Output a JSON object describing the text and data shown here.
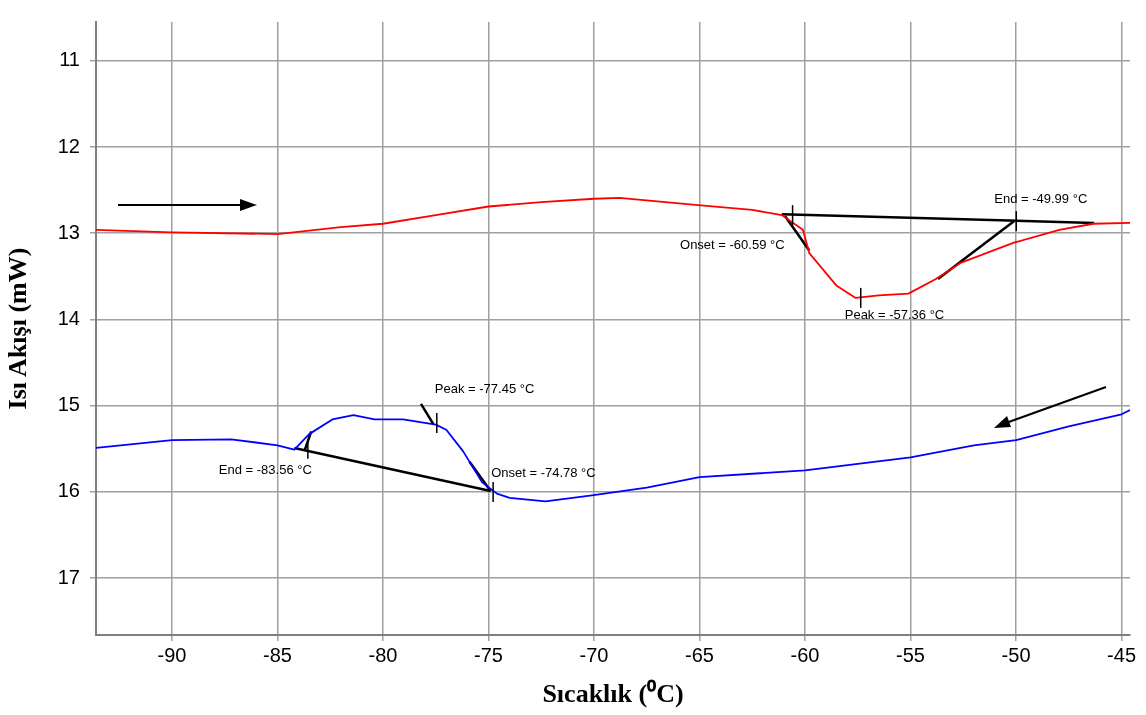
{
  "chart_data": {
    "type": "line",
    "xlabel": "Sıcaklık (⁰C)",
    "ylabel": "Isı Akışı (mW)",
    "xlim": [
      -93.6,
      -44.6
    ],
    "ylim": [
      17.66,
      10.55
    ],
    "xticks": [
      -90,
      -85,
      -80,
      -75,
      -70,
      -65,
      -60,
      -55,
      -50,
      -45
    ],
    "yticks": [
      11,
      12,
      13,
      14,
      15,
      16,
      17
    ],
    "grid": true,
    "legend": false,
    "marker": "none",
    "line_style": "solid",
    "series": [
      {
        "color": "#ff0000",
        "x": [
          -93.6,
          -90,
          -85,
          -82,
          -80,
          -77.5,
          -75,
          -72.5,
          -70,
          -68.8,
          -65.2,
          -62.5,
          -61.1,
          -60.1,
          -59.8,
          -58.5,
          -57.6,
          -56.5,
          -55.1,
          -53.8,
          -52.6,
          -50.1,
          -47.95,
          -46.35,
          -44.6
        ],
        "values": [
          12.96,
          12.99,
          13.01,
          12.93,
          12.89,
          12.79,
          12.69,
          12.64,
          12.6,
          12.59,
          12.67,
          12.73,
          12.79,
          12.96,
          13.23,
          13.61,
          13.75,
          13.72,
          13.7,
          13.53,
          13.34,
          13.11,
          12.96,
          12.89,
          12.88
        ]
      },
      {
        "color": "#0000ff",
        "x": [
          -93.6,
          -90,
          -87.2,
          -85,
          -84.2,
          -83.5,
          -82.4,
          -81.4,
          -80.4,
          -79.05,
          -77.5,
          -77,
          -76.2,
          -75.3,
          -74.6,
          -74,
          -72.3,
          -70.1,
          -67.5,
          -65,
          -60,
          -55,
          -52,
          -50,
          -47.5,
          -45,
          -44.6
        ],
        "values": [
          15.49,
          15.4,
          15.39,
          15.46,
          15.51,
          15.33,
          15.16,
          15.11,
          15.16,
          15.16,
          15.22,
          15.28,
          15.53,
          15.89,
          16.02,
          16.07,
          16.11,
          16.04,
          15.95,
          15.83,
          15.75,
          15.6,
          15.46,
          15.4,
          15.24,
          15.1,
          15.05
        ]
      },
      {
        "color": "#000000",
        "x": [
          -61.1,
          -46.3
        ],
        "values": [
          12.78,
          12.88
        ]
      },
      {
        "color": "#000000",
        "x": [
          -60.95,
          -59.8
        ],
        "values": [
          12.8,
          13.2
        ]
      },
      {
        "color": "#000000",
        "x": [
          -53.7,
          -50.1
        ],
        "values": [
          13.53,
          12.86
        ]
      },
      {
        "color": "#000000",
        "x": [
          -84.2,
          -74.9
        ],
        "values": [
          15.49,
          15.99
        ]
      },
      {
        "color": "#000000",
        "x": [
          -75.9,
          -74.9
        ],
        "values": [
          15.65,
          15.99
        ]
      },
      {
        "color": "#000000",
        "x": [
          -83.7,
          -83.4
        ],
        "values": [
          15.51,
          15.3
        ]
      },
      {
        "color": "#000000",
        "x": [
          -78.2,
          -77.6
        ],
        "values": [
          14.98,
          15.22
        ]
      }
    ],
    "annotations": [
      {
        "text": "Onset = -60.59 °C",
        "x": -60.59,
        "y": 12.79
      },
      {
        "text": "End = -49.99 °C",
        "x": -49.99,
        "y": 12.86
      },
      {
        "text": "Peak = -57.36 °C",
        "x": -57.36,
        "y": 13.75
      },
      {
        "text": "Peak = -77.45 °C",
        "x": -77.45,
        "y": 15.2
      },
      {
        "text": "End = -83.56 °C",
        "x": -83.56,
        "y": 15.5
      },
      {
        "text": "Onset = -74.78 °C",
        "x": -74.78,
        "y": 16.0
      }
    ]
  }
}
